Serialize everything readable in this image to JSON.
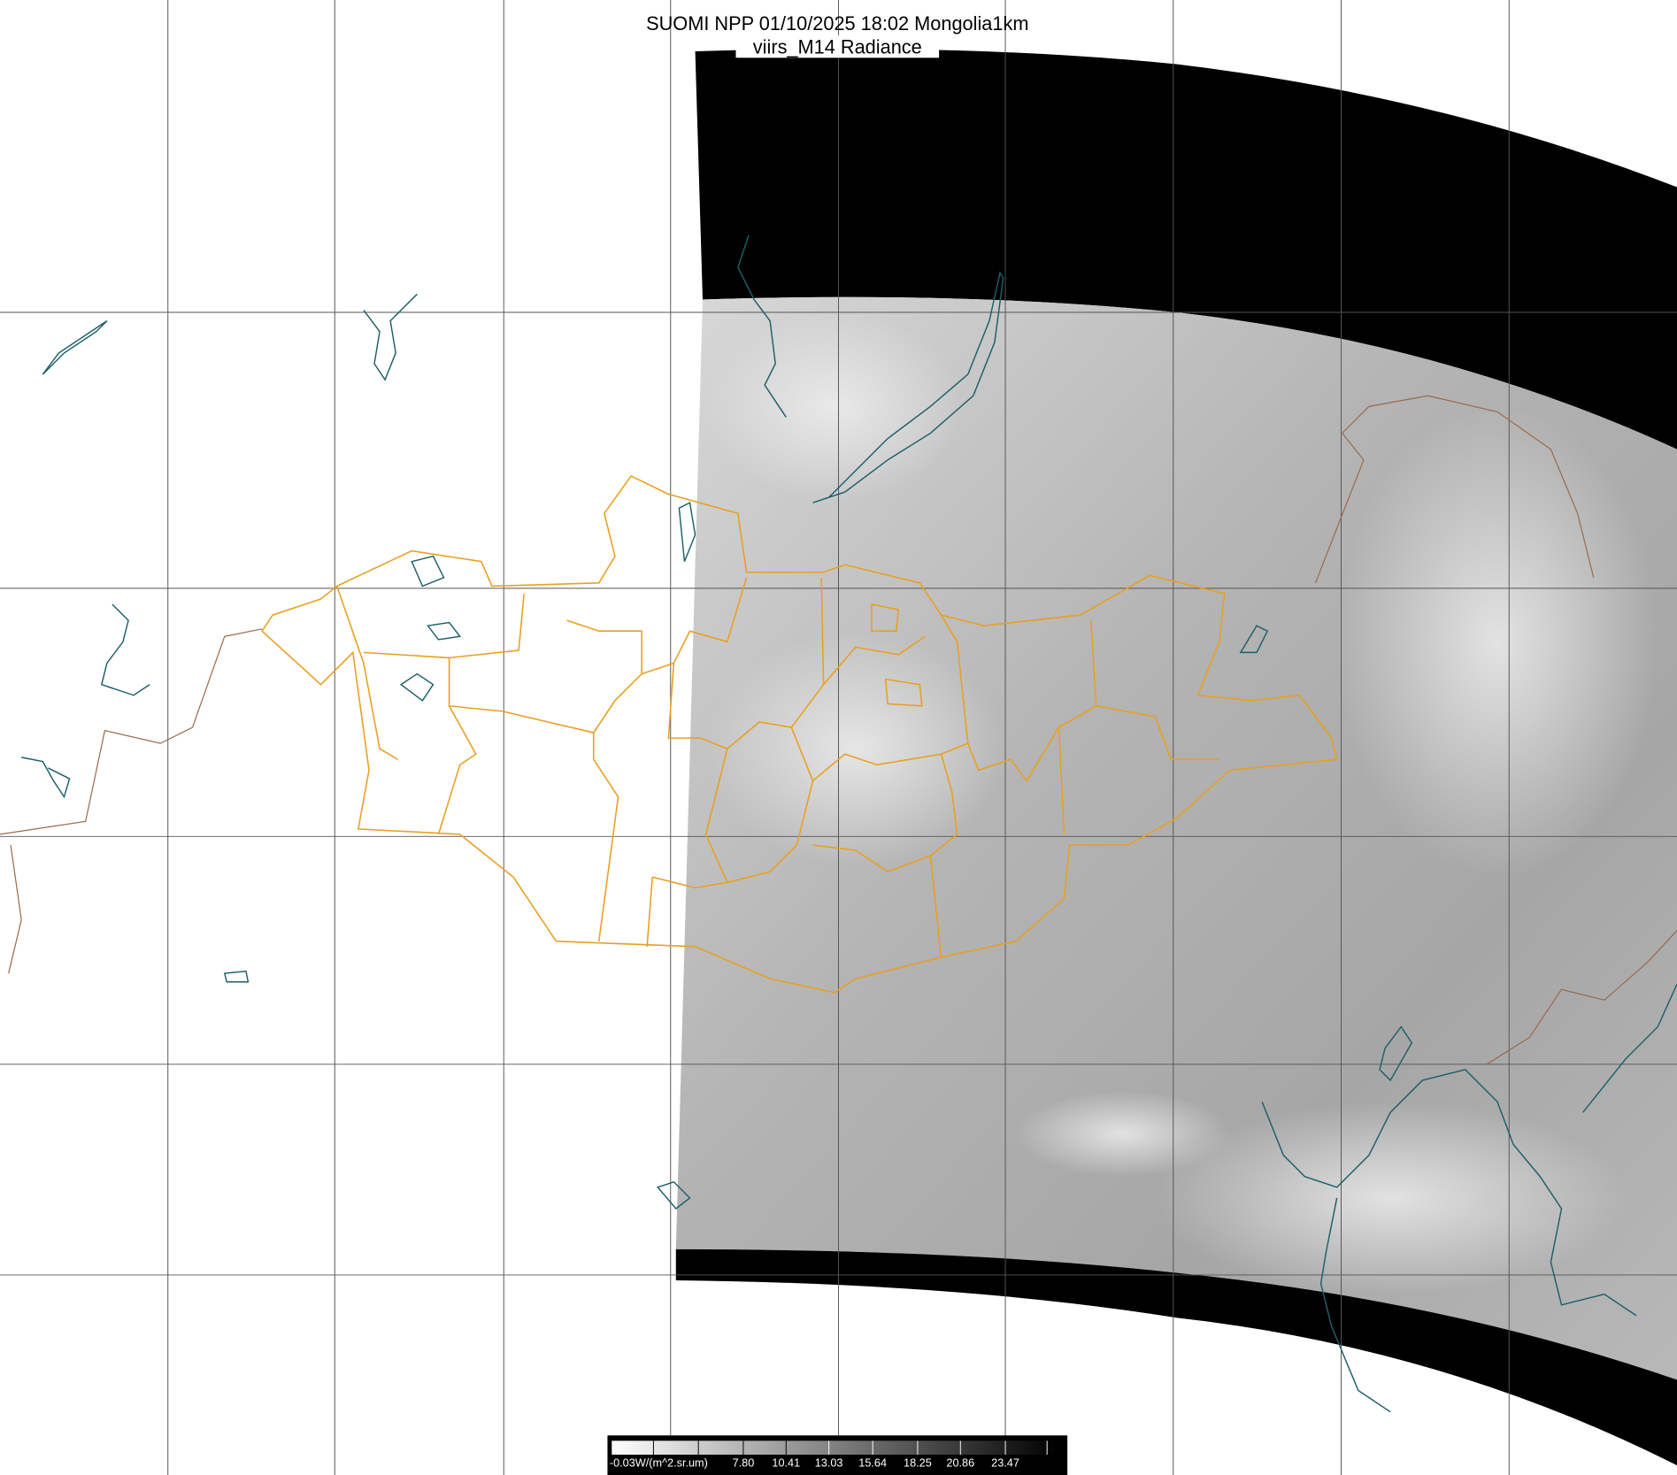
{
  "title": {
    "line1": "SUOMI NPP 01/10/2025 18:02 Mongolia1km",
    "line2": "viirs_M14 Radiance"
  },
  "colorbar": {
    "unit_label": "-0.03W/(m^2.sr.um)",
    "tick_labels": [
      "7.80",
      "10.41",
      "13.03",
      "15.64",
      "18.25",
      "20.86",
      "23.47"
    ],
    "min": -0.03,
    "colormap": "white-to-black grayscale"
  },
  "colors": {
    "background": "#ffffff",
    "no_data": "#000000",
    "grid": "#555555",
    "mongolia_borders": "#e8a020",
    "coastlines_lakes": "#1e5f6a",
    "country_borders": "#9a6a4a"
  }
}
